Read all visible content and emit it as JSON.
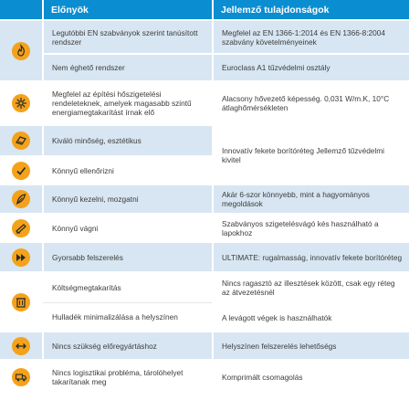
{
  "header": {
    "advantages": "Előnyök",
    "features": "Jellemző tulajdonságok"
  },
  "rows": [
    {
      "icon": "fire-icon",
      "advantage": "Legutóbbi EN szabványok szerint tanúsított rendszer",
      "feature": "Megfelel az EN 1366-1:2014 és EN 1366-8:2004 szabvány követelményeinek"
    },
    {
      "icon": "",
      "advantage": "Nem éghető rendszer",
      "feature": "Euroclass A1 tűzvédelmi osztály"
    },
    {
      "icon": "snowflake-sun-icon",
      "advantage": "Megfelel az építési hőszigetelési rendeleteknek, amelyek magasabb szintű energiamegtakarítást írnak elő",
      "feature": "Alacsony hővezető képesség. 0,031 W/m.K, 10°C átlaghőmérsékleten"
    },
    {
      "icon": "quality-panel-icon",
      "advantage": "Kiváló minőség, esztétikus",
      "feature": "Innovatív fekete borítóréteg Jellemző tűzvédelmi kivitel"
    },
    {
      "icon": "checkmark-icon",
      "advantage": "Könnyű ellenőrizni",
      "feature": ""
    },
    {
      "icon": "feather-icon",
      "advantage": "Könnyű kezelni, mozgatni",
      "feature": "Akár 6-szor könnyebb, mint a hagyományos megoldások"
    },
    {
      "icon": "cutter-icon",
      "advantage": "Könnyű vágni",
      "feature": "Szabványos szigetelésvágó kés használható a lapokhoz"
    },
    {
      "icon": "fast-forward-icon",
      "advantage": "Gyorsabb felszerelés",
      "feature": "ULTIMATE: rugalmasság, innovatív fekete borítóréteg"
    },
    {
      "icon": "",
      "advantage": "Költségmegtakarítás",
      "feature": "Nincs ragasztó az illesztések között, csak egy réteg az átvezetésnél"
    },
    {
      "icon": "waste-bin-icon",
      "advantage": "Hulladék minimalizálása a helyszínen",
      "feature": "A levágott végek is használhatók"
    },
    {
      "icon": "double-arrow-icon",
      "advantage": "Nincs szükség előregyártáshoz",
      "feature": "Helyszínen felszerelés lehetőségs"
    },
    {
      "icon": "truck-icon",
      "advantage": "Nincs logisztikai probléma, tárolóhelyet takarítanak meg",
      "feature": "Komprimált csomagolás"
    }
  ],
  "colors": {
    "header_bg": "#0a8dd1",
    "shade_bg": "#d7e6f2",
    "icon_orange": "#f4a21a"
  }
}
